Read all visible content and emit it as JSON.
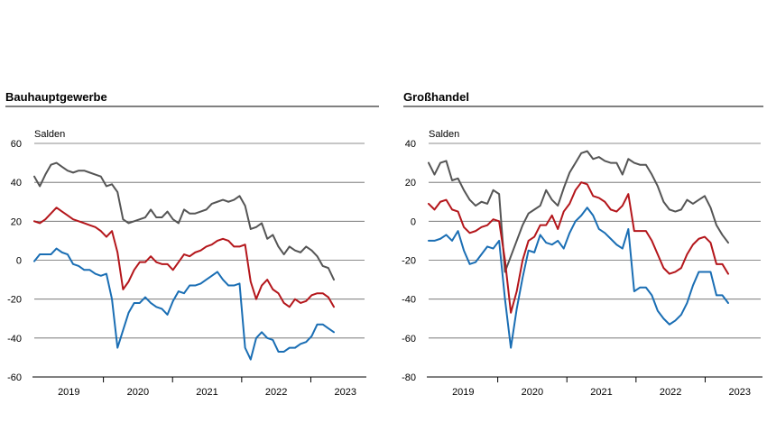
{
  "chart_data": [
    {
      "type": "line",
      "title": "Bauhauptgewerbe",
      "ylabel": "Salden",
      "xlabel": "",
      "ylim": [
        -60,
        60
      ],
      "yticks": [
        60,
        40,
        20,
        0,
        -20,
        -40,
        -60
      ],
      "ytick_labels": [
        "60",
        "40",
        "20",
        "0",
        "-20",
        "-40",
        "-60"
      ],
      "x_range": [
        "2019-01",
        "2023-05"
      ],
      "year_labels": [
        "2019",
        "2020",
        "2021",
        "2022",
        "2023"
      ],
      "grid": true,
      "legend": "none",
      "series": [
        {
          "color": "#555555",
          "values": [
            43,
            38,
            44,
            49,
            50,
            48,
            46,
            45,
            46,
            46,
            45,
            44,
            43,
            38,
            39,
            35,
            21,
            19,
            20,
            21,
            22,
            26,
            22,
            22,
            25,
            21,
            19,
            26,
            24,
            24,
            25,
            26,
            29,
            30,
            31,
            30,
            31,
            33,
            28,
            16,
            17,
            19,
            11,
            13,
            7,
            3,
            7,
            5,
            4,
            7,
            5,
            2,
            -3,
            -4,
            -10
          ]
        },
        {
          "color": "#b4161b",
          "values": [
            20,
            19,
            21,
            24,
            27,
            25,
            23,
            21,
            20,
            19,
            18,
            17,
            15,
            12,
            15,
            4,
            -15,
            -11,
            -5,
            -1,
            -1,
            2,
            -1,
            -2,
            -2,
            -5,
            -1,
            3,
            2,
            4,
            5,
            7,
            8,
            10,
            11,
            10,
            7,
            7,
            8,
            -11,
            -20,
            -13,
            -10,
            -15,
            -17,
            -22,
            -24,
            -20,
            -22,
            -21,
            -18,
            -17,
            -17,
            -19,
            -24
          ]
        },
        {
          "color": "#1a6eb4",
          "values": [
            -0.5,
            3,
            3,
            3,
            6,
            4,
            3,
            -2,
            -3,
            -5,
            -5,
            -7,
            -8,
            -7,
            -20,
            -45,
            -36,
            -27,
            -22,
            -22,
            -19,
            -22,
            -24,
            -25,
            -28,
            -21,
            -16,
            -17,
            -13,
            -13,
            -12,
            -10,
            -8,
            -6,
            -10,
            -13,
            -13,
            -12,
            -45,
            -51,
            -40,
            -37,
            -40,
            -41,
            -47,
            -47,
            -45,
            -45,
            -43,
            -42,
            -39,
            -33,
            -33,
            -35,
            -37
          ]
        }
      ]
    },
    {
      "type": "line",
      "title": "Großhandel",
      "ylabel": "Salden",
      "xlabel": "",
      "ylim": [
        -80,
        40
      ],
      "yticks": [
        40,
        20,
        0,
        -20,
        -40,
        -60,
        -80
      ],
      "ytick_labels": [
        "40",
        "20",
        "0",
        "-20",
        "-40",
        "-60",
        "-80"
      ],
      "x_range": [
        "2019-01",
        "2023-05"
      ],
      "year_labels": [
        "2019",
        "2020",
        "2021",
        "2022",
        "2023"
      ],
      "grid": true,
      "legend": "none",
      "series": [
        {
          "color": "#555555",
          "values": [
            30,
            24,
            30,
            31,
            21,
            22,
            16,
            11,
            8,
            10,
            9,
            16,
            14,
            -26,
            -18,
            -10,
            -2,
            4,
            6,
            8,
            16,
            11,
            8,
            17,
            25,
            30,
            35,
            36,
            32,
            33,
            31,
            30,
            30,
            24,
            32,
            30,
            29,
            29,
            24,
            18,
            10,
            6,
            5,
            6,
            11,
            9,
            11,
            13,
            7,
            -2,
            -7,
            -11
          ]
        },
        {
          "color": "#b4161b",
          "values": [
            9,
            6,
            10,
            11,
            6,
            5,
            -3,
            -6,
            -5,
            -3,
            -2,
            1,
            0,
            -20,
            -47,
            -36,
            -20,
            -10,
            -8,
            -2,
            -2,
            3,
            -4,
            5,
            9,
            16,
            20,
            19,
            13,
            12,
            10,
            6,
            5,
            8,
            14,
            -5,
            -5,
            -5,
            -10,
            -17,
            -24,
            -27,
            -26,
            -24,
            -17,
            -12,
            -9,
            -8,
            -11,
            -22,
            -22,
            -27
          ]
        },
        {
          "color": "#1a6eb4",
          "values": [
            -10,
            -10,
            -9,
            -7,
            -10,
            -5,
            -15,
            -22,
            -21,
            -17,
            -13,
            -14,
            -10,
            -40,
            -65,
            -45,
            -29,
            -15,
            -16,
            -7,
            -11,
            -12,
            -10,
            -14,
            -6,
            0,
            3,
            7,
            3,
            -4,
            -6,
            -9,
            -12,
            -14,
            -4,
            -36,
            -34,
            -34,
            -38,
            -46,
            -50,
            -53,
            -51,
            -48,
            -42,
            -33,
            -26,
            -26,
            -26,
            -38,
            -38,
            -42
          ]
        }
      ]
    }
  ]
}
